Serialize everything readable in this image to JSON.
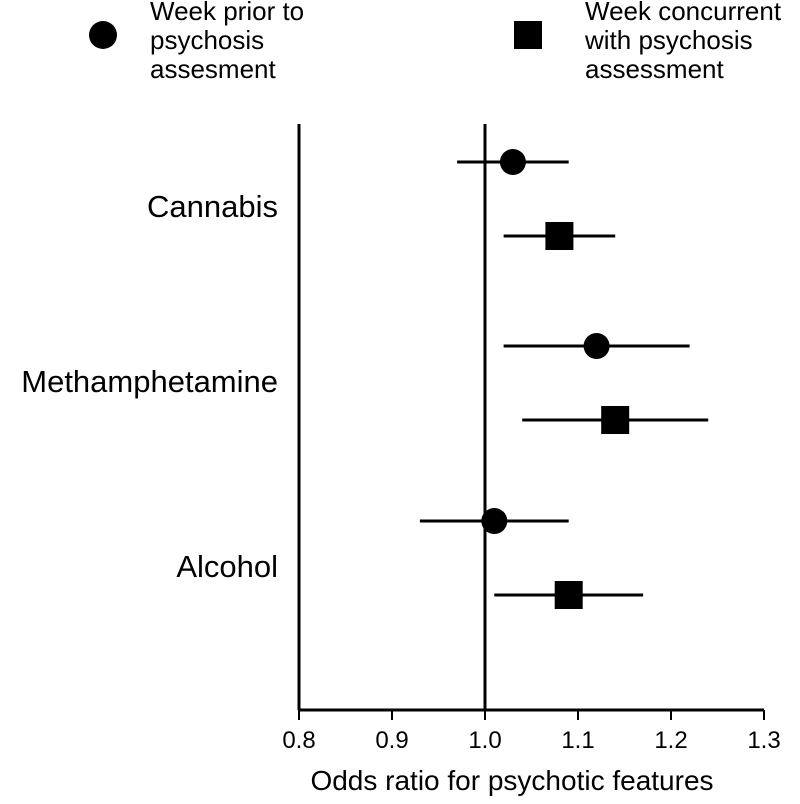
{
  "chart_data": {
    "type": "scatter",
    "subtype": "forest-plot",
    "xlabel": "Odds ratio for psychotic features",
    "xlim": [
      0.8,
      1.3
    ],
    "xticks": [
      "0.8",
      "0.9",
      "1.0",
      "1.1",
      "1.2",
      "1.3"
    ],
    "reference_line": 1.0,
    "grid": false,
    "legend_position": "top",
    "categories": [
      "Cannabis",
      "Methamphetamine",
      "Alcohol"
    ],
    "series": [
      {
        "name_lines": [
          "Week prior to",
          "psychosis",
          "assesment"
        ],
        "marker": "circle",
        "points": [
          {
            "category": "Cannabis",
            "estimate": 1.03,
            "lower": 0.97,
            "upper": 1.09
          },
          {
            "category": "Methamphetamine",
            "estimate": 1.12,
            "lower": 1.02,
            "upper": 1.22
          },
          {
            "category": "Alcohol",
            "estimate": 1.01,
            "lower": 0.93,
            "upper": 1.09
          }
        ]
      },
      {
        "name_lines": [
          "Week concurrent",
          "with psychosis",
          "assessment"
        ],
        "marker": "square",
        "points": [
          {
            "category": "Cannabis",
            "estimate": 1.08,
            "lower": 1.02,
            "upper": 1.14
          },
          {
            "category": "Methamphetamine",
            "estimate": 1.14,
            "lower": 1.04,
            "upper": 1.24
          },
          {
            "category": "Alcohol",
            "estimate": 1.09,
            "lower": 1.01,
            "upper": 1.17
          }
        ]
      }
    ]
  }
}
